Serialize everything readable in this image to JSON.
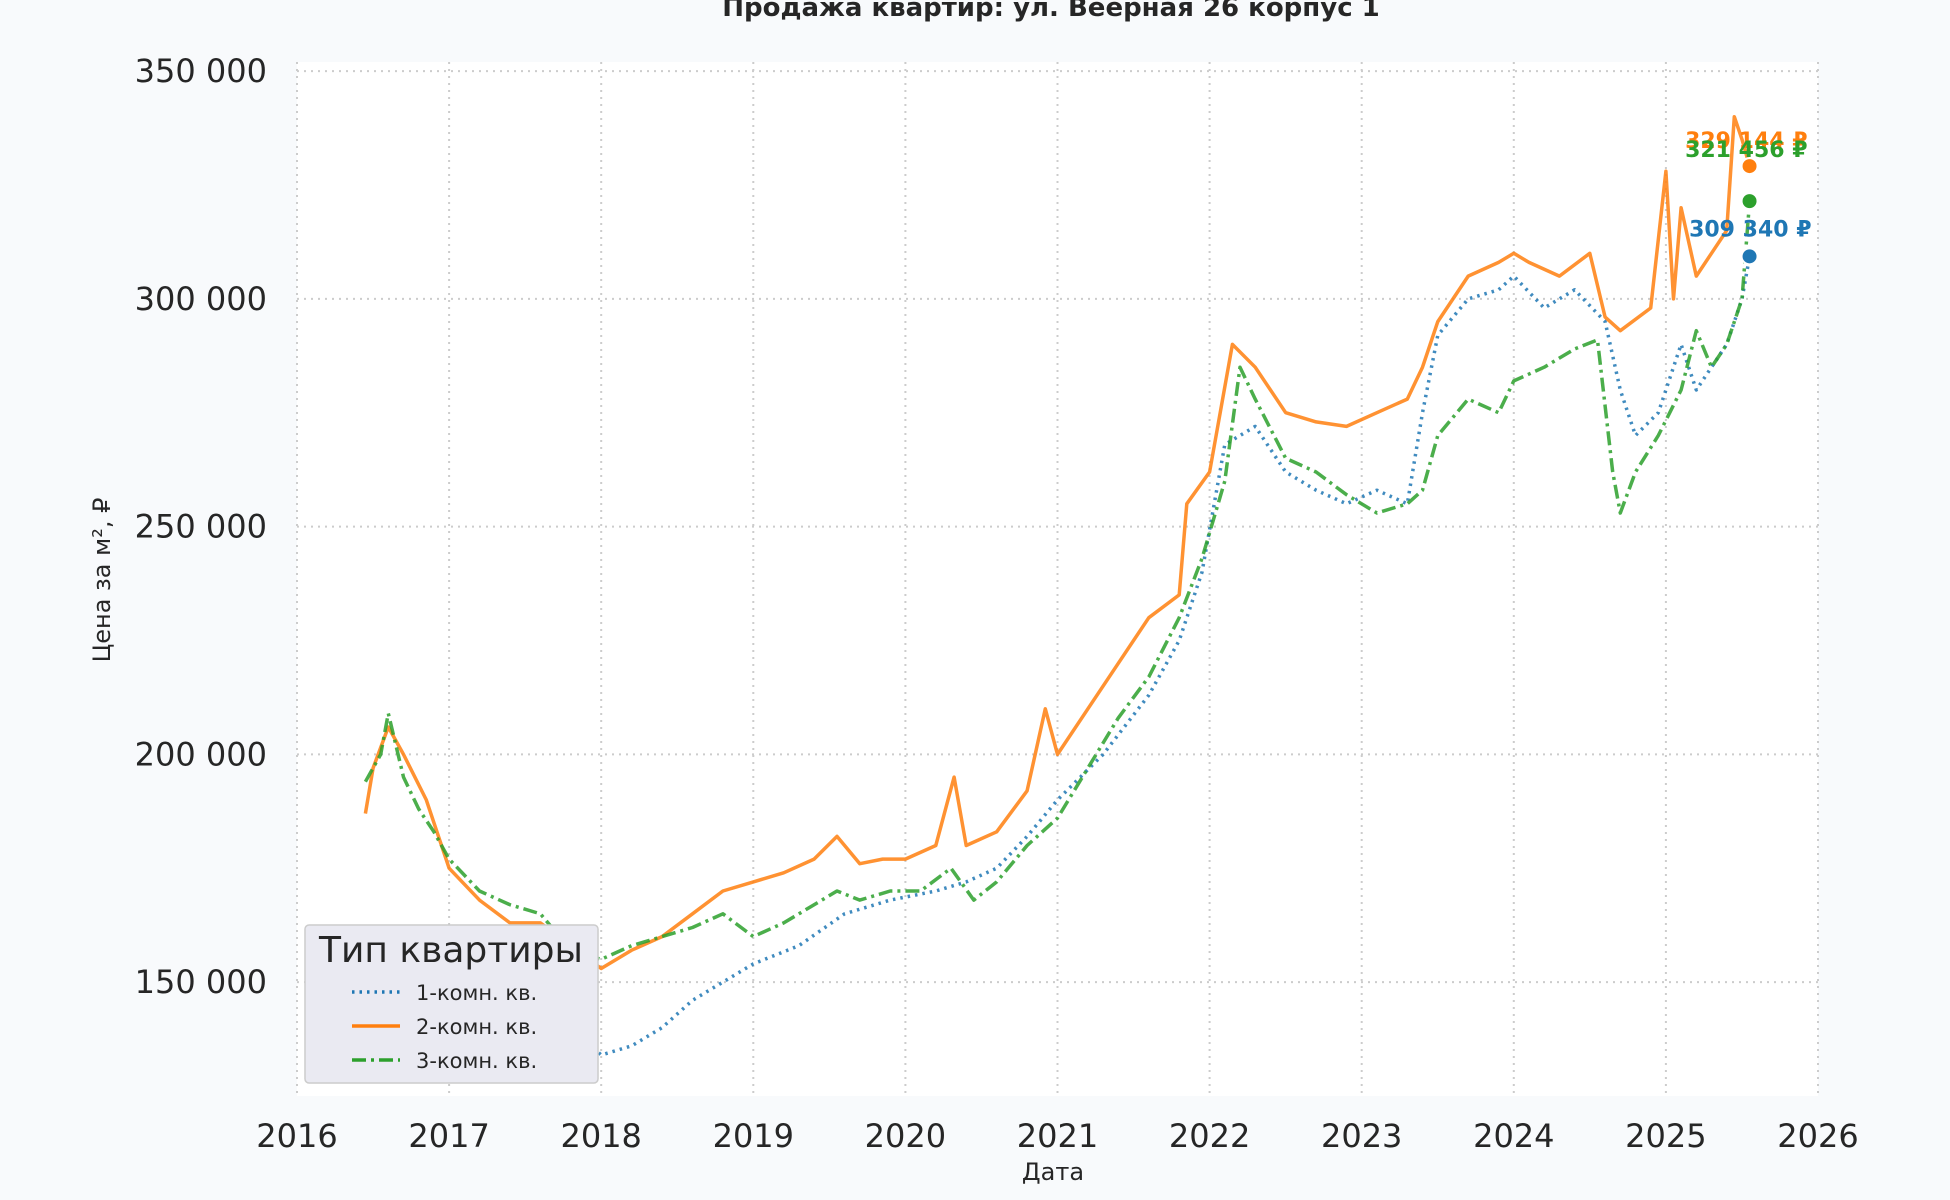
{
  "chart_data": {
    "type": "line",
    "title": "Продажа квартир: ул. Веерная 26 корпус 1",
    "xlabel": "Дата",
    "ylabel": "Цена за м², ₽",
    "xlim": [
      2016,
      2026
    ],
    "ylim": [
      125000,
      352000
    ],
    "x_ticks": [
      2016,
      2017,
      2018,
      2019,
      2020,
      2021,
      2022,
      2023,
      2024,
      2025,
      2026
    ],
    "x_tick_labels": [
      "2016",
      "2017",
      "2018",
      "2019",
      "2020",
      "2021",
      "2022",
      "2023",
      "2024",
      "2025",
      "2026"
    ],
    "y_ticks": [
      150000,
      200000,
      250000,
      300000,
      350000
    ],
    "y_tick_labels": [
      "150 000",
      "200 000",
      "250 000",
      "300 000",
      "350 000"
    ],
    "grid": true,
    "legend": {
      "title": "Тип квартиры",
      "position": "lower-left"
    },
    "series": [
      {
        "name": "1-комн. кв.",
        "color": "#1f77b4",
        "dash": "dotted",
        "end_label": "309 340 ₽",
        "end_point": [
          2025.55,
          309340
        ],
        "x": [
          2016.7,
          2017.0,
          2017.3,
          2017.6,
          2017.9,
          2018.0,
          2018.2,
          2018.4,
          2018.6,
          2018.8,
          2019.0,
          2019.3,
          2019.6,
          2019.9,
          2020.2,
          2020.4,
          2020.6,
          2020.8,
          2021.0,
          2021.3,
          2021.6,
          2021.8,
          2021.95,
          2022.1,
          2022.3,
          2022.5,
          2022.7,
          2022.9,
          2023.1,
          2023.3,
          2023.4,
          2023.5,
          2023.7,
          2023.9,
          2024.0,
          2024.2,
          2024.4,
          2024.6,
          2024.7,
          2024.8,
          2024.95,
          2025.1,
          2025.2,
          2025.3,
          2025.4,
          2025.5,
          2025.55
        ],
        "y": [
          150000,
          145000,
          142000,
          140000,
          137000,
          134000,
          136000,
          140000,
          146000,
          150000,
          154000,
          158000,
          165000,
          168000,
          170000,
          172000,
          175000,
          182000,
          190000,
          200000,
          213000,
          225000,
          240000,
          268000,
          272000,
          262000,
          258000,
          255000,
          258000,
          255000,
          275000,
          292000,
          300000,
          302000,
          305000,
          298000,
          302000,
          295000,
          280000,
          270000,
          275000,
          290000,
          280000,
          285000,
          290000,
          300000,
          309340
        ]
      },
      {
        "name": "2-комн. кв.",
        "color": "#ff7f0e",
        "dash": "solid",
        "end_label": "329 144 ₽",
        "end_point": [
          2025.55,
          329144
        ],
        "x": [
          2016.45,
          2016.5,
          2016.6,
          2016.7,
          2016.85,
          2017.0,
          2017.2,
          2017.4,
          2017.6,
          2017.8,
          2018.0,
          2018.2,
          2018.4,
          2018.6,
          2018.8,
          2019.0,
          2019.2,
          2019.4,
          2019.55,
          2019.7,
          2019.85,
          2020.0,
          2020.2,
          2020.32,
          2020.4,
          2020.6,
          2020.8,
          2020.92,
          2021.0,
          2021.2,
          2021.4,
          2021.6,
          2021.8,
          2021.85,
          2022.0,
          2022.15,
          2022.3,
          2022.5,
          2022.7,
          2022.9,
          2023.1,
          2023.3,
          2023.4,
          2023.5,
          2023.7,
          2023.9,
          2024.0,
          2024.1,
          2024.3,
          2024.5,
          2024.6,
          2024.7,
          2024.9,
          2025.0,
          2025.05,
          2025.1,
          2025.2,
          2025.3,
          2025.4,
          2025.45,
          2025.5,
          2025.55
        ],
        "y": [
          187000,
          197000,
          206000,
          200000,
          190000,
          175000,
          168000,
          163000,
          163000,
          158000,
          153000,
          157000,
          160000,
          165000,
          170000,
          172000,
          174000,
          177000,
          182000,
          176000,
          177000,
          177000,
          180000,
          195000,
          180000,
          183000,
          192000,
          210000,
          200000,
          210000,
          220000,
          230000,
          235000,
          255000,
          262000,
          290000,
          285000,
          275000,
          273000,
          272000,
          275000,
          278000,
          285000,
          295000,
          305000,
          308000,
          310000,
          308000,
          305000,
          310000,
          296000,
          293000,
          298000,
          328000,
          300000,
          320000,
          305000,
          310000,
          315000,
          340000,
          335000,
          329144
        ]
      },
      {
        "name": "3-комн. кв.",
        "color": "#2ca02c",
        "dash": "dashdot",
        "end_label": "321 456 ₽",
        "end_point": [
          2025.55,
          321456
        ],
        "x": [
          2016.45,
          2016.55,
          2016.6,
          2016.7,
          2016.8,
          2016.9,
          2017.0,
          2017.2,
          2017.4,
          2017.6,
          2017.8,
          2018.0,
          2018.2,
          2018.4,
          2018.6,
          2018.8,
          2019.0,
          2019.2,
          2019.4,
          2019.55,
          2019.7,
          2019.9,
          2020.1,
          2020.3,
          2020.45,
          2020.6,
          2020.8,
          2021.0,
          2021.2,
          2021.4,
          2021.6,
          2021.8,
          2021.95,
          2022.1,
          2022.2,
          2022.3,
          2022.5,
          2022.7,
          2022.9,
          2023.1,
          2023.3,
          2023.4,
          2023.5,
          2023.7,
          2023.9,
          2024.0,
          2024.2,
          2024.4,
          2024.55,
          2024.65,
          2024.7,
          2024.8,
          2024.95,
          2025.1,
          2025.2,
          2025.3,
          2025.4,
          2025.5,
          2025.55
        ],
        "y": [
          194000,
          200000,
          209000,
          195000,
          188000,
          183000,
          177000,
          170000,
          167000,
          165000,
          157000,
          155000,
          158000,
          160000,
          162000,
          165000,
          160000,
          163000,
          167000,
          170000,
          168000,
          170000,
          170000,
          175000,
          168000,
          172000,
          180000,
          186000,
          197000,
          208000,
          217000,
          230000,
          243000,
          260000,
          285000,
          278000,
          265000,
          262000,
          257000,
          253000,
          255000,
          258000,
          270000,
          278000,
          275000,
          282000,
          285000,
          289000,
          291000,
          262000,
          253000,
          262000,
          270000,
          280000,
          293000,
          285000,
          290000,
          300000,
          321456
        ]
      }
    ]
  }
}
